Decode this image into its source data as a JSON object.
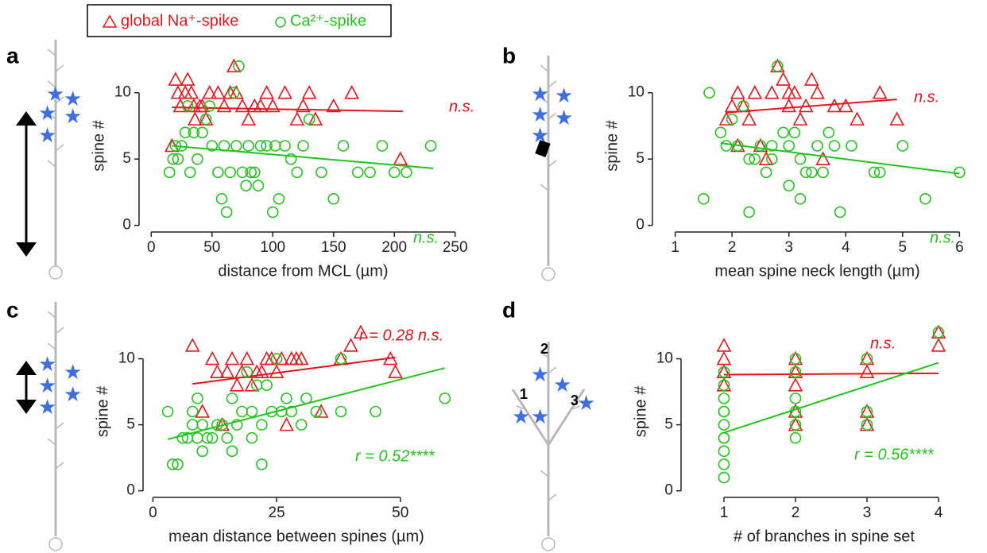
{
  "chart_data": [
    {
      "type": "scatter",
      "panel": "a",
      "xlabel": "distance from MCL (µm)",
      "ylabel": "spine #",
      "xlim": [
        -10,
        260
      ],
      "ylim": [
        -0.5,
        12.5
      ],
      "xticks": [
        0,
        50,
        100,
        150,
        200,
        250
      ],
      "yticks": [
        0,
        5,
        10
      ],
      "series": [
        {
          "name": "global Na⁺-spike",
          "color": "#e8141c",
          "marker": "triangle",
          "x": [
            17,
            20,
            22,
            24,
            28,
            30,
            33,
            35,
            36,
            40,
            42,
            45,
            48,
            55,
            60,
            65,
            68,
            70,
            75,
            80,
            85,
            90,
            95,
            100,
            110,
            120,
            125,
            130,
            135,
            150,
            165,
            205
          ],
          "values": [
            6,
            11,
            10,
            9,
            10,
            11,
            10,
            9,
            8,
            9,
            9,
            8,
            10,
            10,
            9,
            10,
            12,
            10,
            9,
            8,
            9,
            9,
            10,
            9,
            10,
            8,
            9,
            10,
            8,
            9,
            10,
            5
          ],
          "fit_x": [
            17,
            207
          ],
          "fit_y": [
            8.9,
            8.6
          ],
          "fit_label": "n.s."
        },
        {
          "name": "Ca²⁺-spike",
          "color": "#22c41c",
          "marker": "circle",
          "x": [
            15,
            18,
            20,
            22,
            25,
            28,
            30,
            32,
            35,
            38,
            42,
            45,
            48,
            50,
            55,
            58,
            60,
            62,
            65,
            68,
            70,
            72,
            75,
            78,
            80,
            82,
            85,
            88,
            90,
            95,
            100,
            102,
            105,
            110,
            115,
            120,
            125,
            130,
            140,
            150,
            158,
            170,
            180,
            190,
            200,
            210,
            230
          ],
          "values": [
            4,
            5,
            6,
            5,
            6,
            7,
            9,
            4,
            7,
            5,
            7,
            8,
            9,
            6,
            4,
            2,
            6,
            1,
            4,
            10,
            6,
            12,
            4,
            3,
            6,
            4,
            4,
            3,
            6,
            6,
            1,
            6,
            2,
            6,
            5,
            4,
            6,
            8,
            4,
            2,
            6,
            4,
            4,
            6,
            4,
            4,
            6
          ],
          "fit_x": [
            17,
            232
          ],
          "fit_y": [
            6.0,
            4.3
          ],
          "fit_label": "n.s."
        }
      ]
    },
    {
      "type": "scatter",
      "panel": "b",
      "xlabel": "mean spine neck length (µm)",
      "ylabel": "spine #",
      "xlim": [
        0.6,
        6.4
      ],
      "ylim": [
        -0.5,
        12.5
      ],
      "xticks": [
        1,
        2,
        3,
        4,
        5,
        6
      ],
      "yticks": [
        0,
        5,
        10
      ],
      "series": [
        {
          "color": "#e8141c",
          "marker": "triangle",
          "x": [
            1.9,
            2.0,
            2.1,
            2.2,
            2.3,
            2.4,
            2.5,
            2.6,
            2.7,
            2.8,
            2.9,
            3.0,
            3.1,
            3.2,
            3.3,
            3.4,
            3.5,
            3.6,
            3.8,
            4.0,
            4.2,
            4.6,
            4.9,
            3.0,
            2.1
          ],
          "values": [
            8,
            9,
            10,
            9,
            8,
            10,
            6,
            5,
            10,
            12,
            11,
            9,
            10,
            8,
            9,
            11,
            10,
            5,
            9,
            9,
            8,
            10,
            8,
            10,
            6
          ],
          "fit_x": [
            1.9,
            4.9
          ],
          "fit_y": [
            8.5,
            9.5
          ],
          "fit_label": "n.s."
        },
        {
          "color": "#22c41c",
          "marker": "circle",
          "x": [
            1.5,
            1.6,
            1.8,
            1.9,
            2.0,
            2.1,
            2.2,
            2.3,
            2.4,
            2.3,
            2.5,
            2.6,
            2.7,
            2.8,
            2.9,
            3.0,
            3.0,
            3.1,
            3.2,
            3.3,
            3.4,
            3.5,
            3.6,
            3.7,
            3.8,
            3.9,
            4.1,
            4.5,
            4.6,
            5.0,
            5.4,
            6.0,
            2.7,
            3.2
          ],
          "values": [
            2,
            10,
            7,
            6,
            8,
            6,
            9,
            5,
            5,
            1,
            6,
            4,
            5,
            12,
            7,
            6,
            3,
            7,
            2,
            4,
            4,
            6,
            4,
            7,
            6,
            1,
            6,
            4,
            4,
            6,
            2,
            4,
            6,
            5
          ],
          "fit_x": [
            1.8,
            6.0
          ],
          "fit_y": [
            6.2,
            3.9
          ],
          "fit_label": "n.s."
        }
      ]
    },
    {
      "type": "scatter",
      "panel": "c",
      "xlabel": "mean distance between spines (µm)",
      "ylabel": "spine #",
      "xlim": [
        -2,
        60
      ],
      "ylim": [
        -0.5,
        12.5
      ],
      "xticks": [
        0,
        25,
        50
      ],
      "yticks": [
        0,
        5,
        10
      ],
      "series": [
        {
          "color": "#e8141c",
          "marker": "triangle",
          "x": [
            8,
            10,
            12,
            13,
            14,
            15,
            16,
            17,
            18,
            19,
            20,
            21,
            22,
            23,
            24,
            25,
            26,
            27,
            28,
            29,
            30,
            34,
            38,
            40,
            42,
            48,
            49
          ],
          "values": [
            11,
            6,
            10,
            9,
            5,
            9,
            10,
            8,
            9,
            10,
            8,
            9,
            9,
            10,
            10,
            9,
            10,
            5,
            10,
            10,
            10,
            6,
            10,
            11,
            12,
            10,
            9
          ],
          "fit_x": [
            8,
            49
          ],
          "fit_y": [
            8.1,
            10.1
          ],
          "fit_label": "r = 0.28 n.s."
        },
        {
          "color": "#22c41c",
          "marker": "circle",
          "x": [
            3,
            4,
            5,
            6,
            7,
            8,
            8,
            9,
            9,
            10,
            10,
            11,
            12,
            13,
            14,
            15,
            16,
            16,
            17,
            18,
            19,
            20,
            20,
            21,
            22,
            22,
            23,
            24,
            25,
            26,
            27,
            28,
            30,
            31,
            33,
            38,
            38,
            45,
            59
          ],
          "values": [
            6,
            2,
            2,
            4,
            4,
            5,
            6,
            7,
            4,
            3,
            5,
            4,
            4,
            5,
            5,
            4,
            7,
            3,
            5,
            6,
            9,
            6,
            4,
            8,
            5,
            2,
            8,
            6,
            10,
            6,
            7,
            6,
            5,
            7,
            6,
            6,
            10,
            6,
            7
          ],
          "fit_x": [
            3,
            59
          ],
          "fit_y": [
            3.9,
            9.3
          ],
          "fit_label": "r = 0.52****"
        }
      ]
    },
    {
      "type": "scatter",
      "panel": "d",
      "xlabel": "# of branches in spine set",
      "ylabel": "spine #",
      "xlim": [
        0.4,
        4.4
      ],
      "ylim": [
        -0.5,
        12.5
      ],
      "xticks": [
        1,
        2,
        3,
        4
      ],
      "yticks": [
        0,
        5,
        10
      ],
      "diagram_labels": [
        "1",
        "2",
        "3"
      ],
      "series": [
        {
          "color": "#e8141c",
          "marker": "triangle",
          "x": [
            1,
            1,
            1,
            1,
            1,
            2,
            2,
            2,
            2,
            2,
            3,
            3,
            3,
            3,
            4,
            4
          ],
          "values": [
            11,
            10,
            9,
            9,
            8,
            10,
            9,
            8,
            6,
            5,
            10,
            9,
            6,
            5,
            12,
            11
          ],
          "fit_x": [
            1,
            4
          ],
          "fit_y": [
            8.8,
            8.9
          ],
          "fit_label": "n.s."
        },
        {
          "color": "#22c41c",
          "marker": "circle",
          "x": [
            1,
            1,
            1,
            1,
            1,
            1,
            1,
            1,
            1,
            1,
            1,
            2,
            2,
            2,
            2,
            2,
            2,
            3,
            3,
            3,
            4
          ],
          "values": [
            1,
            2,
            3,
            4,
            4,
            5,
            6,
            6,
            7,
            8,
            9,
            4,
            5,
            6,
            7,
            9,
            10,
            5,
            6,
            10,
            12
          ],
          "fit_x": [
            1,
            4
          ],
          "fit_y": [
            4.4,
            9.7
          ],
          "fit_label": "r = 0.56****"
        }
      ]
    }
  ]
}
